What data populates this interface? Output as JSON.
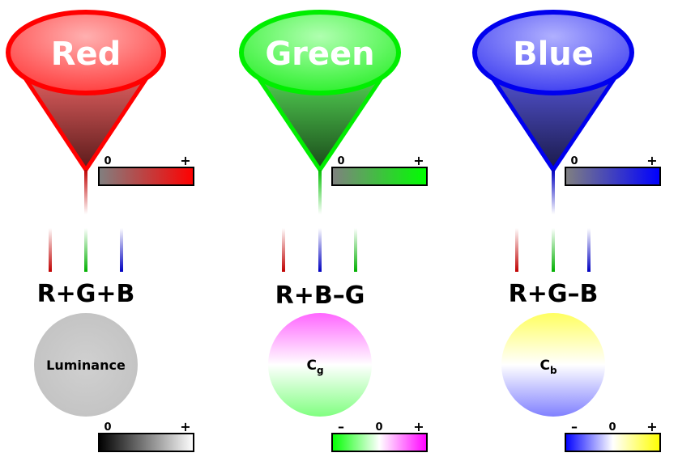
{
  "funnels": [
    {
      "label": "Red",
      "color": "#ff0000",
      "dark": "#b30000",
      "light": "#ff9b9b",
      "bar_zero": "0",
      "bar_plus": "+"
    },
    {
      "label": "Green",
      "color": "#00ee00",
      "dark": "#009a00",
      "light": "#9bff9b",
      "bar_zero": "0",
      "bar_plus": "+"
    },
    {
      "label": "Blue",
      "color": "#0000ee",
      "dark": "#00009a",
      "light": "#a0a0ff",
      "bar_zero": "0",
      "bar_plus": "+"
    }
  ],
  "line_colors": {
    "red": "#c00000",
    "green": "#00b000",
    "blue": "#0000c0"
  },
  "formulas": [
    "R+G+B",
    "R+B–G",
    "R+G–B"
  ],
  "circles": [
    {
      "label": "Luminance",
      "sub": ""
    },
    {
      "label": "C",
      "sub": "g"
    },
    {
      "label": "C",
      "sub": "b"
    }
  ],
  "bottom_bars": [
    {
      "ticks": [
        "0",
        "+"
      ]
    },
    {
      "ticks": [
        "–",
        "0",
        "+"
      ]
    },
    {
      "ticks": [
        "–",
        "0",
        "+"
      ]
    }
  ]
}
